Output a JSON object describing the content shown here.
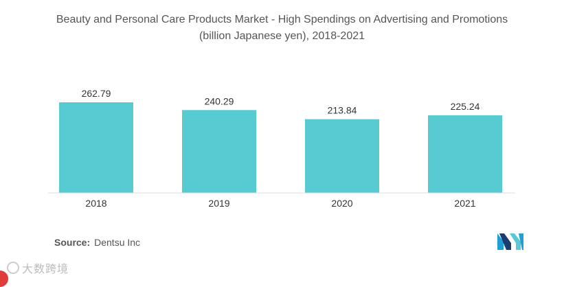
{
  "chart_data": {
    "type": "bar",
    "title_lines": [
      "Beauty and Personal Care Products Market - High Spendings on Advertising and Promotions",
      "(billion Japanese yen), 2018-2021"
    ],
    "categories": [
      "2018",
      "2019",
      "2020",
      "2021"
    ],
    "values": [
      262.79,
      240.29,
      213.84,
      225.24
    ],
    "value_labels": [
      "262.79",
      "240.29",
      "213.84",
      "225.24"
    ],
    "xlabel": "",
    "ylabel": "",
    "ylim": [
      0,
      262.79
    ],
    "grid": false,
    "bar_color": "#56ccd2"
  },
  "source": {
    "label": "Source:",
    "text": "Dentsu Inc"
  },
  "logo": {
    "icon": "mordor-intelligence-logo-icon",
    "colors": [
      "#1e9fd6",
      "#1a3c6e",
      "#5bc8d6"
    ]
  },
  "watermark": {
    "text": "大数跨境",
    "icon": "watermark-icon"
  }
}
